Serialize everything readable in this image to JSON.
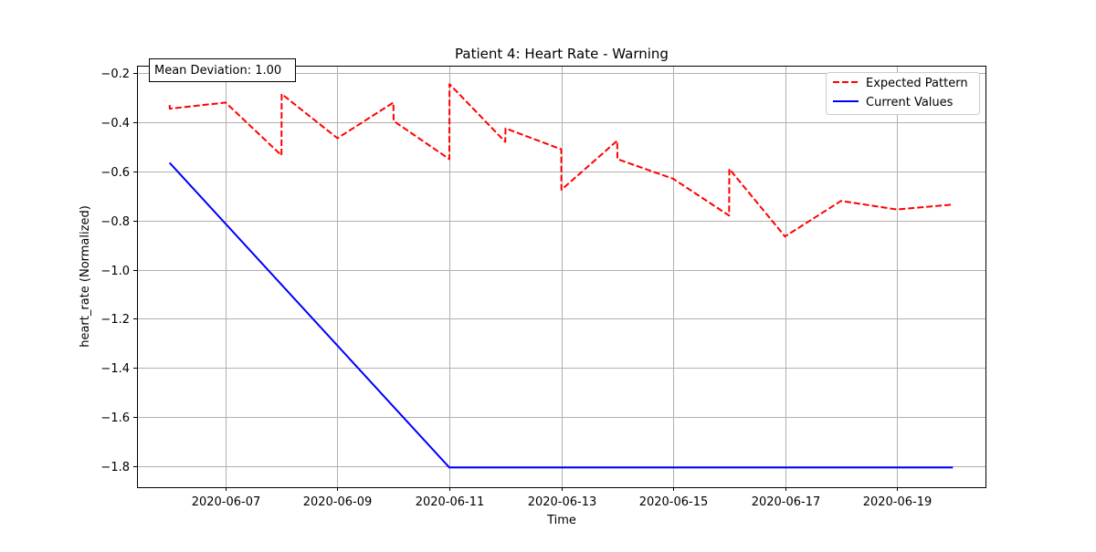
{
  "chart_data": {
    "type": "line",
    "title": "Patient 4: Heart Rate - Warning",
    "xlabel": "Time",
    "ylabel": "heart_rate (Normalized)",
    "x_ticks": [
      "2020-06-07",
      "2020-06-09",
      "2020-06-11",
      "2020-06-13",
      "2020-06-15",
      "2020-06-17",
      "2020-06-19"
    ],
    "y_ticks": [
      -1.8,
      -1.6,
      -1.4,
      -1.2,
      -1.0,
      -0.8,
      -0.6,
      -0.4,
      -0.2
    ],
    "x_range": [
      "2020-06-05T10:00",
      "2020-06-20T14:00"
    ],
    "ylim": [
      -1.885,
      -0.17
    ],
    "grid": true,
    "legend_position": "top-right",
    "annotation": "Mean Deviation: 1.00",
    "series": [
      {
        "name": "Expected Pattern",
        "color": "#ff0000",
        "style": "dashed",
        "points": [
          [
            "2020-06-06T00:00",
            -0.33
          ],
          [
            "2020-06-06T00:05",
            -0.345
          ],
          [
            "2020-06-07T00:00",
            -0.32
          ],
          [
            "2020-06-08T00:00",
            -0.535
          ],
          [
            "2020-06-08T00:05",
            -0.285
          ],
          [
            "2020-06-09T00:00",
            -0.465
          ],
          [
            "2020-06-10T00:00",
            -0.32
          ],
          [
            "2020-06-10T00:05",
            -0.395
          ],
          [
            "2020-06-11T00:00",
            -0.55
          ],
          [
            "2020-06-11T00:05",
            -0.245
          ],
          [
            "2020-06-12T00:00",
            -0.48
          ],
          [
            "2020-06-12T00:05",
            -0.425
          ],
          [
            "2020-06-13T00:00",
            -0.51
          ],
          [
            "2020-06-13T00:05",
            -0.675
          ],
          [
            "2020-06-14T00:00",
            -0.475
          ],
          [
            "2020-06-14T00:05",
            -0.55
          ],
          [
            "2020-06-15T00:00",
            -0.63
          ],
          [
            "2020-06-16T00:00",
            -0.78
          ],
          [
            "2020-06-16T00:05",
            -0.59
          ],
          [
            "2020-06-17T00:00",
            -0.865
          ],
          [
            "2020-06-18T00:00",
            -0.72
          ],
          [
            "2020-06-19T00:00",
            -0.755
          ],
          [
            "2020-06-20T00:00",
            -0.735
          ]
        ]
      },
      {
        "name": "Current Values",
        "color": "#0000ff",
        "style": "solid",
        "points": [
          [
            "2020-06-06T00:00",
            -0.565
          ],
          [
            "2020-06-11T00:00",
            -1.805
          ],
          [
            "2020-06-20T00:00",
            -1.805
          ]
        ]
      }
    ]
  }
}
